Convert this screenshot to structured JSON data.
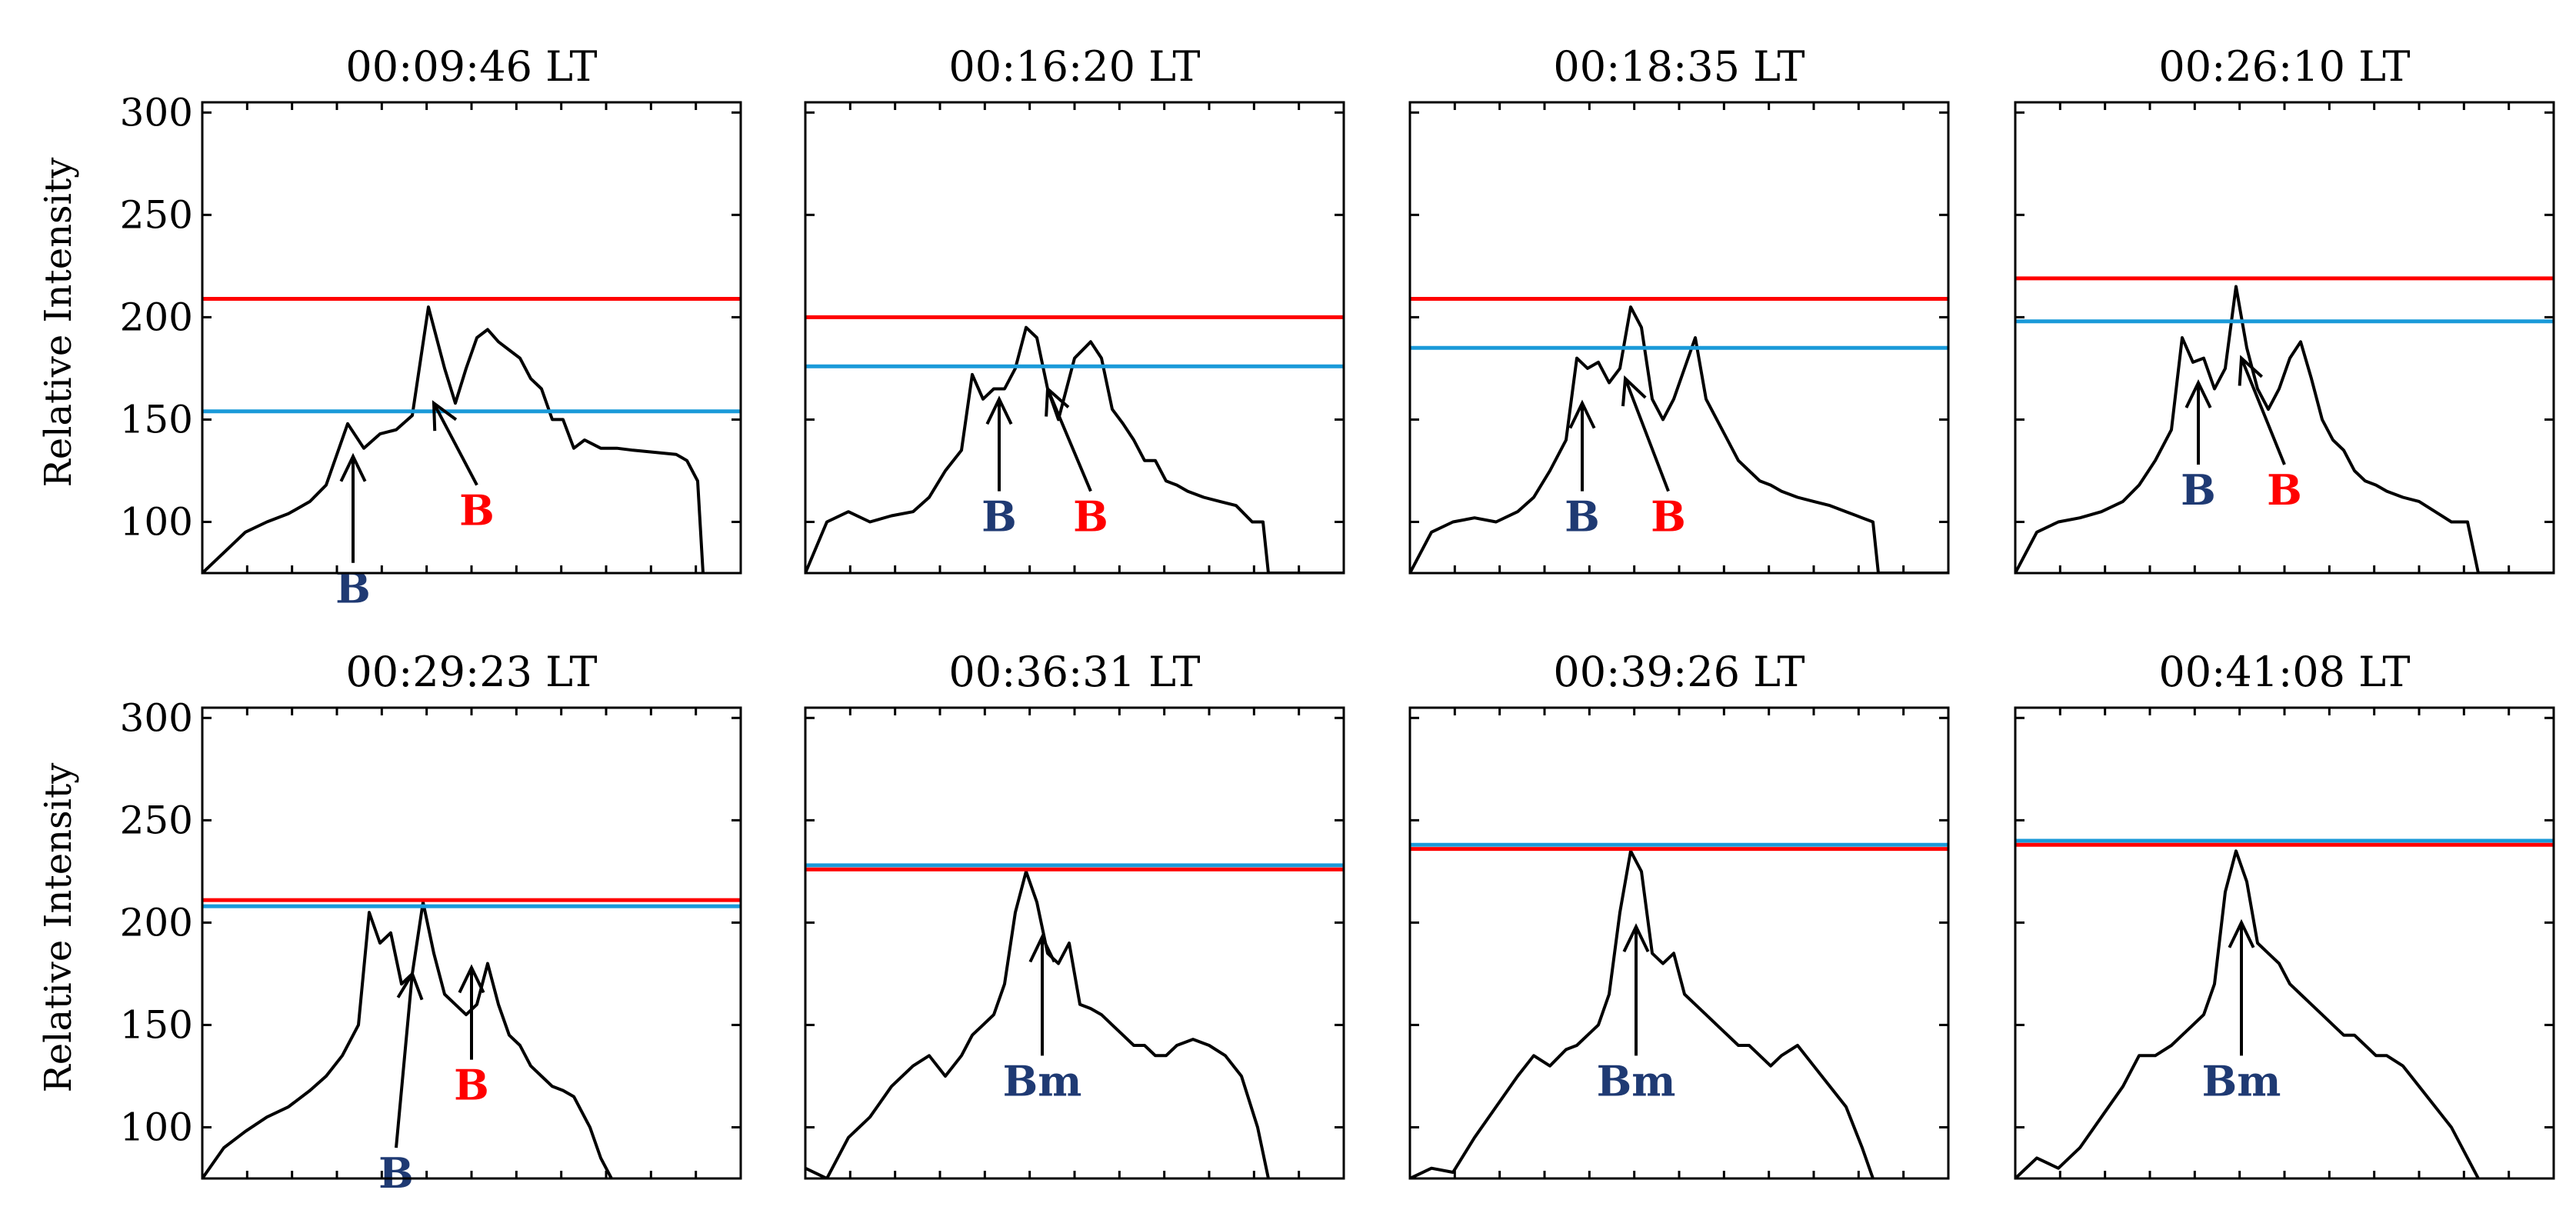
{
  "colors": {
    "red_line": "#ff0000",
    "blue_line": "#1a9ad9",
    "blue_label": "#1f3a73",
    "red_label": "#ff0000",
    "profile": "#000000"
  },
  "chart_data": [
    {
      "type": "line",
      "title": "00:09:46 LT",
      "ylabel": "Relative Intensity",
      "ylim": [
        75,
        305
      ],
      "yticks": [
        "100",
        "150",
        "200",
        "250",
        "300"
      ],
      "x": [
        0,
        0.04,
        0.08,
        0.12,
        0.16,
        0.2,
        0.23,
        0.27,
        0.3,
        0.33,
        0.36,
        0.39,
        0.42,
        0.45,
        0.47,
        0.49,
        0.51,
        0.53,
        0.55,
        0.57,
        0.59,
        0.61,
        0.63,
        0.65,
        0.67,
        0.69,
        0.71,
        0.74,
        0.77,
        0.8,
        0.84,
        0.88,
        0.9,
        0.92,
        0.93,
        0.94,
        1
      ],
      "y": [
        75,
        85,
        95,
        100,
        104,
        110,
        118,
        148,
        136,
        143,
        145,
        152,
        205,
        175,
        158,
        175,
        190,
        194,
        188,
        184,
        180,
        170,
        165,
        150,
        150,
        136,
        140,
        136,
        136,
        135,
        134,
        133,
        130,
        120,
        75,
        60,
        60
      ],
      "red_line": 209,
      "blue_line": 154,
      "arrows": [
        {
          "tip": [
            0.28,
            132
          ],
          "tail": [
            0.28,
            80
          ],
          "label": "B",
          "label_color": "blue"
        },
        {
          "tip": [
            0.43,
            158
          ],
          "tail": [
            0.51,
            118
          ],
          "label": "B",
          "label_color": "red"
        }
      ]
    },
    {
      "type": "line",
      "title": "00:16:20 LT",
      "ylim": [
        75,
        305
      ],
      "yticks": [
        "100",
        "150",
        "200",
        "250",
        "300"
      ],
      "x": [
        0,
        0.04,
        0.08,
        0.12,
        0.16,
        0.2,
        0.23,
        0.26,
        0.29,
        0.31,
        0.33,
        0.35,
        0.37,
        0.39,
        0.41,
        0.43,
        0.45,
        0.47,
        0.5,
        0.53,
        0.55,
        0.57,
        0.59,
        0.61,
        0.63,
        0.65,
        0.67,
        0.69,
        0.71,
        0.74,
        0.77,
        0.8,
        0.83,
        0.85,
        0.86,
        1
      ],
      "y": [
        75,
        100,
        105,
        100,
        103,
        105,
        112,
        125,
        135,
        172,
        160,
        165,
        165,
        175,
        195,
        190,
        165,
        150,
        180,
        188,
        180,
        155,
        148,
        140,
        130,
        130,
        120,
        118,
        115,
        112,
        110,
        108,
        100,
        100,
        75,
        75
      ],
      "red_line": 200,
      "blue_line": 176,
      "arrows": [
        {
          "tip": [
            0.36,
            160
          ],
          "tail": [
            0.36,
            115
          ],
          "label": "B",
          "label_color": "blue"
        },
        {
          "tip": [
            0.45,
            165
          ],
          "tail": [
            0.53,
            115
          ],
          "label": "B",
          "label_color": "red"
        }
      ]
    },
    {
      "type": "line",
      "title": "00:18:35 LT",
      "ylim": [
        75,
        305
      ],
      "yticks": [
        "100",
        "150",
        "200",
        "250",
        "300"
      ],
      "x": [
        0,
        0.04,
        0.08,
        0.12,
        0.16,
        0.2,
        0.23,
        0.26,
        0.29,
        0.31,
        0.33,
        0.35,
        0.37,
        0.39,
        0.41,
        0.43,
        0.45,
        0.47,
        0.49,
        0.51,
        0.53,
        0.55,
        0.57,
        0.59,
        0.61,
        0.63,
        0.65,
        0.67,
        0.69,
        0.72,
        0.75,
        0.78,
        0.81,
        0.84,
        0.86,
        0.87,
        1
      ],
      "y": [
        75,
        95,
        100,
        102,
        100,
        105,
        112,
        125,
        140,
        180,
        175,
        178,
        168,
        175,
        205,
        195,
        160,
        150,
        160,
        175,
        190,
        160,
        150,
        140,
        130,
        125,
        120,
        118,
        115,
        112,
        110,
        108,
        105,
        102,
        100,
        75,
        75
      ],
      "red_line": 209,
      "blue_line": 185,
      "arrows": [
        {
          "tip": [
            0.32,
            158
          ],
          "tail": [
            0.32,
            115
          ],
          "label": "B",
          "label_color": "blue"
        },
        {
          "tip": [
            0.4,
            170
          ],
          "tail": [
            0.48,
            115
          ],
          "label": "B",
          "label_color": "red"
        }
      ]
    },
    {
      "type": "line",
      "title": "00:26:10 LT",
      "ylim": [
        75,
        305
      ],
      "yticks": [
        "100",
        "150",
        "200",
        "250",
        "300"
      ],
      "x": [
        0,
        0.04,
        0.08,
        0.12,
        0.16,
        0.2,
        0.23,
        0.26,
        0.29,
        0.31,
        0.33,
        0.35,
        0.37,
        0.39,
        0.41,
        0.43,
        0.45,
        0.47,
        0.49,
        0.51,
        0.53,
        0.55,
        0.57,
        0.59,
        0.61,
        0.63,
        0.65,
        0.67,
        0.69,
        0.72,
        0.75,
        0.78,
        0.81,
        0.84,
        0.86,
        1
      ],
      "y": [
        75,
        95,
        100,
        102,
        105,
        110,
        118,
        130,
        145,
        190,
        178,
        180,
        165,
        175,
        215,
        185,
        165,
        155,
        165,
        180,
        188,
        170,
        150,
        140,
        135,
        125,
        120,
        118,
        115,
        112,
        110,
        105,
        100,
        100,
        75,
        75
      ],
      "red_line": 219,
      "blue_line": 198,
      "arrows": [
        {
          "tip": [
            0.34,
            168
          ],
          "tail": [
            0.34,
            128
          ],
          "label": "B",
          "label_color": "blue"
        },
        {
          "tip": [
            0.42,
            180
          ],
          "tail": [
            0.5,
            128
          ],
          "label": "B",
          "label_color": "red"
        }
      ]
    },
    {
      "type": "line",
      "title": "00:29:23 LT",
      "ylabel": "Relative Intensity",
      "ylim": [
        75,
        305
      ],
      "yticks": [
        "100",
        "150",
        "200",
        "250",
        "300"
      ],
      "x": [
        0,
        0.04,
        0.08,
        0.12,
        0.16,
        0.2,
        0.23,
        0.26,
        0.29,
        0.31,
        0.33,
        0.35,
        0.37,
        0.39,
        0.41,
        0.43,
        0.45,
        0.47,
        0.49,
        0.51,
        0.53,
        0.55,
        0.57,
        0.59,
        0.61,
        0.63,
        0.65,
        0.67,
        0.69,
        0.72,
        0.74,
        0.76,
        0.77,
        1
      ],
      "y": [
        75,
        90,
        98,
        105,
        110,
        118,
        125,
        135,
        150,
        205,
        190,
        195,
        170,
        175,
        210,
        185,
        165,
        160,
        155,
        160,
        180,
        160,
        145,
        140,
        130,
        125,
        120,
        118,
        115,
        100,
        85,
        75,
        60,
        60
      ],
      "red_line": 211,
      "blue_line": 208,
      "arrows": [
        {
          "tip": [
            0.39,
            175
          ],
          "tail": [
            0.36,
            90
          ],
          "label": "B",
          "label_color": "blue"
        },
        {
          "tip": [
            0.5,
            178
          ],
          "tail": [
            0.5,
            133
          ],
          "label": "B",
          "label_color": "red"
        }
      ]
    },
    {
      "type": "line",
      "title": "00:36:31 LT",
      "ylim": [
        75,
        305
      ],
      "yticks": [
        "100",
        "150",
        "200",
        "250",
        "300"
      ],
      "x": [
        0,
        0.04,
        0.08,
        0.12,
        0.16,
        0.2,
        0.23,
        0.26,
        0.29,
        0.31,
        0.33,
        0.35,
        0.37,
        0.39,
        0.41,
        0.43,
        0.45,
        0.47,
        0.49,
        0.51,
        0.53,
        0.55,
        0.57,
        0.59,
        0.61,
        0.63,
        0.65,
        0.67,
        0.69,
        0.72,
        0.75,
        0.78,
        0.81,
        0.84,
        0.86,
        0.87,
        1
      ],
      "y": [
        80,
        75,
        95,
        105,
        120,
        130,
        135,
        125,
        135,
        145,
        150,
        155,
        170,
        205,
        225,
        210,
        185,
        180,
        190,
        160,
        158,
        155,
        150,
        145,
        140,
        140,
        135,
        135,
        140,
        143,
        140,
        135,
        125,
        100,
        75,
        60,
        60
      ],
      "red_line": 226,
      "blue_line": 228,
      "arrows": [
        {
          "tip": [
            0.44,
            193
          ],
          "tail": [
            0.44,
            135
          ],
          "label": "Bm",
          "label_color": "blue"
        }
      ]
    },
    {
      "type": "line",
      "title": "00:39:26 LT",
      "ylim": [
        75,
        305
      ],
      "yticks": [
        "100",
        "150",
        "200",
        "250",
        "300"
      ],
      "x": [
        0,
        0.04,
        0.08,
        0.12,
        0.16,
        0.2,
        0.23,
        0.26,
        0.29,
        0.31,
        0.33,
        0.35,
        0.37,
        0.39,
        0.41,
        0.43,
        0.45,
        0.47,
        0.49,
        0.51,
        0.53,
        0.55,
        0.57,
        0.59,
        0.61,
        0.63,
        0.65,
        0.67,
        0.69,
        0.72,
        0.75,
        0.78,
        0.81,
        0.84,
        0.86,
        0.87,
        1
      ],
      "y": [
        75,
        80,
        78,
        95,
        110,
        125,
        135,
        130,
        138,
        140,
        145,
        150,
        165,
        205,
        235,
        225,
        185,
        180,
        185,
        165,
        160,
        155,
        150,
        145,
        140,
        140,
        135,
        130,
        135,
        140,
        130,
        120,
        110,
        90,
        75,
        60,
        60
      ],
      "red_line": 236,
      "blue_line": 238,
      "arrows": [
        {
          "tip": [
            0.42,
            198
          ],
          "tail": [
            0.42,
            135
          ],
          "label": "Bm",
          "label_color": "blue"
        }
      ]
    },
    {
      "type": "line",
      "title": "00:41:08 LT",
      "ylim": [
        75,
        305
      ],
      "yticks": [
        "100",
        "150",
        "200",
        "250",
        "300"
      ],
      "x": [
        0,
        0.04,
        0.08,
        0.12,
        0.16,
        0.2,
        0.23,
        0.26,
        0.29,
        0.31,
        0.33,
        0.35,
        0.37,
        0.39,
        0.41,
        0.43,
        0.45,
        0.47,
        0.49,
        0.51,
        0.53,
        0.55,
        0.57,
        0.59,
        0.61,
        0.63,
        0.65,
        0.67,
        0.69,
        0.72,
        0.75,
        0.78,
        0.81,
        0.84,
        0.86,
        0.87,
        1
      ],
      "y": [
        75,
        85,
        80,
        90,
        105,
        120,
        135,
        135,
        140,
        145,
        150,
        155,
        170,
        215,
        235,
        220,
        190,
        185,
        180,
        170,
        165,
        160,
        155,
        150,
        145,
        145,
        140,
        135,
        135,
        130,
        120,
        110,
        100,
        85,
        75,
        60,
        60
      ],
      "red_line": 238,
      "blue_line": 240,
      "arrows": [
        {
          "tip": [
            0.42,
            200
          ],
          "tail": [
            0.42,
            135
          ],
          "label": "Bm",
          "label_color": "blue"
        }
      ]
    }
  ]
}
